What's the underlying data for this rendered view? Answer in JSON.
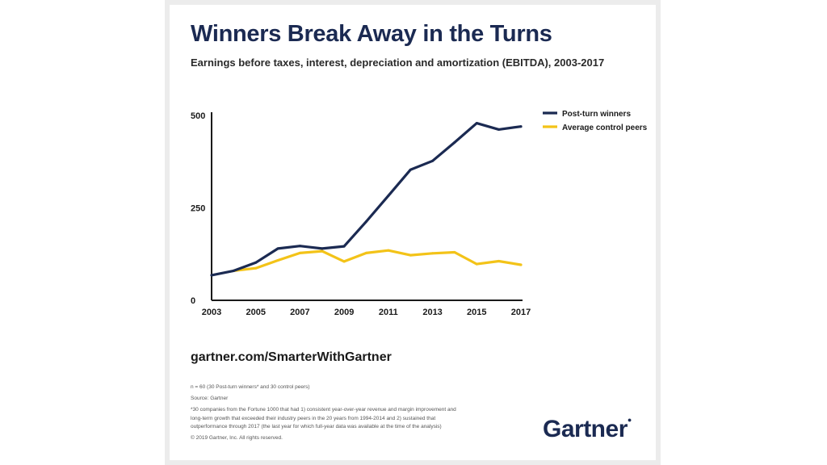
{
  "page": {
    "title": "Winners Break Away in the Turns",
    "subtitle": "Earnings before taxes, interest, depreciation and amortization (EBITDA), 2003-2017",
    "source_url": "gartner.com/SmarterWithGartner",
    "footnotes": {
      "sample": "n = 60 (30 Post-turn winners* and 30 control peers)",
      "source": "Source: Gartner",
      "definition": "*30 companies from the Fortune 1000 that had 1) consistent year-over-year revenue and margin improvement and long-term growth that exceeded their industry peers in the 20 years from 1994-2014 and 2) sustained that outperformance through 2017 (the last year for which full-year data was available at the time of the analysis)",
      "copyright": "© 2019 Gartner, Inc. All rights reserved."
    },
    "logo": "Gartner"
  },
  "chart_data": {
    "type": "line",
    "title": "Winners Break Away in the Turns",
    "xlabel": "",
    "ylabel": "",
    "x": [
      2003,
      2004,
      2005,
      2006,
      2007,
      2008,
      2009,
      2010,
      2011,
      2012,
      2013,
      2014,
      2015,
      2016,
      2017
    ],
    "xticks": [
      2003,
      2005,
      2007,
      2009,
      2011,
      2013,
      2015,
      2017
    ],
    "xtick_labels": [
      "2003",
      "2005",
      "2007",
      "2009",
      "2011",
      "2013",
      "2015",
      "2017"
    ],
    "yticks": [
      0,
      250,
      500
    ],
    "ytick_labels": [
      "0",
      "250",
      "500"
    ],
    "xlim": [
      2003,
      2017
    ],
    "ylim": [
      0,
      500
    ],
    "grid": false,
    "legend_position": "top-right",
    "series": [
      {
        "name": "Post-turn winners",
        "color": "#1b2a52",
        "values": [
          68,
          80,
          102,
          140,
          147,
          140,
          146,
          213,
          283,
          353,
          377,
          427,
          479,
          462,
          470
        ]
      },
      {
        "name": "Average control peers",
        "color": "#f3c318",
        "values": [
          null,
          80,
          87,
          108,
          128,
          133,
          105,
          128,
          135,
          122,
          127,
          130,
          98,
          106,
          96
        ]
      }
    ]
  }
}
